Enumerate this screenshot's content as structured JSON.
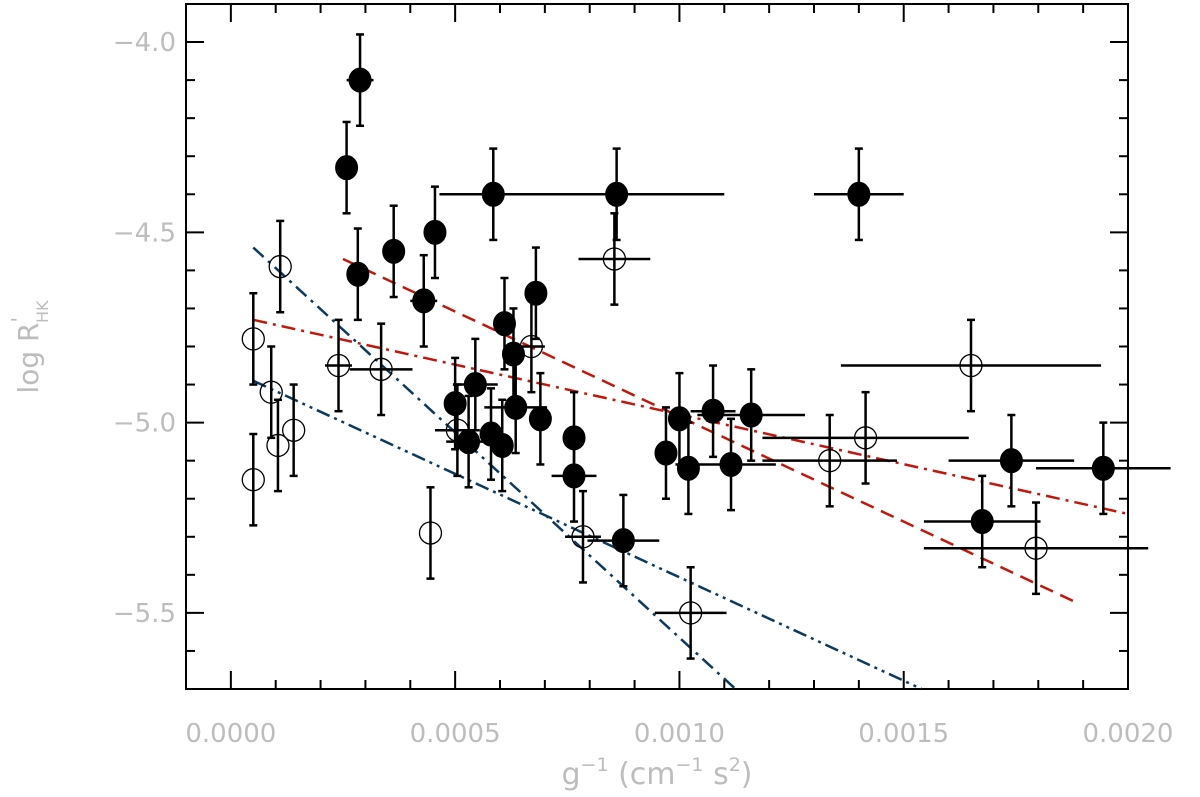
{
  "chart_data": {
    "type": "scatter",
    "xlabel": {
      "base": "g",
      "sup": "−1",
      "units": "(cm",
      "units_sup": "−1",
      "units_tail": " s",
      "units_tail_sup": "2",
      "close": ")"
    },
    "ylabel": {
      "base": "log R",
      "sup": "'",
      "sub": "HK"
    },
    "xlim": [
      -0.0001,
      0.002
    ],
    "ylim": [
      -5.7,
      -3.9
    ],
    "x_ticks": [
      {
        "v": 0.0,
        "label": "0.0000"
      },
      {
        "v": 0.0005,
        "label": "0.0005"
      },
      {
        "v": 0.001,
        "label": "0.0010"
      },
      {
        "v": 0.0015,
        "label": "0.0015"
      },
      {
        "v": 0.002,
        "label": "0.0020"
      }
    ],
    "y_ticks": [
      {
        "v": -4.0,
        "label": "−4.0"
      },
      {
        "v": -4.5,
        "label": "−4.5"
      },
      {
        "v": -5.0,
        "label": "−5.0"
      },
      {
        "v": -5.5,
        "label": "−5.5"
      }
    ],
    "grid": false,
    "series": [
      {
        "marker": "filled",
        "points": [
          {
            "x": 0.000288,
            "y": -4.1,
            "xe": 3e-05,
            "ye": 0.12
          },
          {
            "x": 0.000258,
            "y": -4.33,
            "xe": 0.0,
            "ye": 0.12
          },
          {
            "x": 0.000283,
            "y": -4.61,
            "xe": 0.0,
            "ye": 0.12
          },
          {
            "x": 0.000363,
            "y": -4.55,
            "xe": 0.0,
            "ye": 0.12
          },
          {
            "x": 0.00043,
            "y": -4.68,
            "xe": 3e-05,
            "ye": 0.12
          },
          {
            "x": 0.000455,
            "y": -4.5,
            "xe": 0.0,
            "ye": 0.12
          },
          {
            "x": 0.000585,
            "y": -4.4,
            "xe": 0.00012,
            "ye": 0.12
          },
          {
            "x": 0.00086,
            "y": -4.4,
            "xe": 0.00024,
            "ye": 0.12
          },
          {
            "x": 0.0014,
            "y": -4.4,
            "xe": 0.0001,
            "ye": 0.12
          },
          {
            "x": 0.00068,
            "y": -4.66,
            "xe": 0.0,
            "ye": 0.12
          },
          {
            "x": 0.00061,
            "y": -4.74,
            "xe": 0.0,
            "ye": 0.12
          },
          {
            "x": 0.00063,
            "y": -4.82,
            "xe": 0.0,
            "ye": 0.12
          },
          {
            "x": 0.0005,
            "y": -4.95,
            "xe": 0.0,
            "ye": 0.12
          },
          {
            "x": 0.000545,
            "y": -4.9,
            "xe": 5e-05,
            "ye": 0.12
          },
          {
            "x": 0.00053,
            "y": -5.05,
            "xe": 5e-05,
            "ye": 0.12
          },
          {
            "x": 0.00058,
            "y": -5.03,
            "xe": 0.0,
            "ye": 0.12
          },
          {
            "x": 0.000605,
            "y": -5.06,
            "xe": 0.0,
            "ye": 0.12
          },
          {
            "x": 0.000635,
            "y": -4.96,
            "xe": 7e-05,
            "ye": 0.12
          },
          {
            "x": 0.00069,
            "y": -4.99,
            "xe": 0.0,
            "ye": 0.12
          },
          {
            "x": 0.000765,
            "y": -5.04,
            "xe": 0.0,
            "ye": 0.12
          },
          {
            "x": 0.000765,
            "y": -5.14,
            "xe": 5e-05,
            "ye": 0.12
          },
          {
            "x": 0.000875,
            "y": -5.31,
            "xe": 8e-05,
            "ye": 0.12
          },
          {
            "x": 0.00097,
            "y": -5.08,
            "xe": 0.0,
            "ye": 0.12
          },
          {
            "x": 0.001,
            "y": -4.99,
            "xe": 0.0,
            "ye": 0.12
          },
          {
            "x": 0.00102,
            "y": -5.12,
            "xe": 0.0,
            "ye": 0.12
          },
          {
            "x": 0.001075,
            "y": -4.97,
            "xe": 5e-05,
            "ye": 0.12
          },
          {
            "x": 0.00116,
            "y": -4.98,
            "xe": 0.00012,
            "ye": 0.12
          },
          {
            "x": 0.001115,
            "y": -5.11,
            "xe": 0.0001,
            "ye": 0.12
          },
          {
            "x": 0.001675,
            "y": -5.26,
            "xe": 0.00013,
            "ye": 0.12
          },
          {
            "x": 0.00174,
            "y": -5.1,
            "xe": 0.00014,
            "ye": 0.12
          },
          {
            "x": 0.001945,
            "y": -5.12,
            "xe": 0.00015,
            "ye": 0.12
          }
        ]
      },
      {
        "marker": "open",
        "points": [
          {
            "x": 0.00011,
            "y": -4.59,
            "xe": 0.0,
            "ye": 0.12
          },
          {
            "x": 5e-05,
            "y": -4.78,
            "xe": 0.0,
            "ye": 0.12
          },
          {
            "x": 9e-05,
            "y": -4.92,
            "xe": 0.0,
            "ye": 0.12
          },
          {
            "x": 0.00014,
            "y": -5.02,
            "xe": 0.0,
            "ye": 0.12
          },
          {
            "x": 0.000105,
            "y": -5.06,
            "xe": 0.0,
            "ye": 0.12
          },
          {
            "x": 5e-05,
            "y": -5.15,
            "xe": 0.0,
            "ye": 0.12
          },
          {
            "x": 0.00024,
            "y": -4.85,
            "xe": 3e-05,
            "ye": 0.12
          },
          {
            "x": 0.000335,
            "y": -4.86,
            "xe": 7e-05,
            "ye": 0.12
          },
          {
            "x": 0.000445,
            "y": -5.29,
            "xe": 0.0,
            "ye": 0.12
          },
          {
            "x": 0.000505,
            "y": -5.02,
            "xe": 5e-05,
            "ye": 0.12
          },
          {
            "x": 0.00067,
            "y": -4.8,
            "xe": 3e-05,
            "ye": 0.12
          },
          {
            "x": 0.000855,
            "y": -4.57,
            "xe": 8e-05,
            "ye": 0.12
          },
          {
            "x": 0.000785,
            "y": -5.3,
            "xe": 4e-05,
            "ye": 0.12
          },
          {
            "x": 0.001025,
            "y": -5.5,
            "xe": 8e-05,
            "ye": 0.12
          },
          {
            "x": 0.001335,
            "y": -5.1,
            "xe": 0.00015,
            "ye": 0.12
          },
          {
            "x": 0.001415,
            "y": -5.04,
            "xe": 0.00023,
            "ye": 0.12
          },
          {
            "x": 0.00165,
            "y": -4.85,
            "xe": 0.00029,
            "ye": 0.12
          },
          {
            "x": 0.001795,
            "y": -5.33,
            "xe": 0.00025,
            "ye": 0.12
          }
        ]
      }
    ],
    "fit_lines": [
      {
        "style": "dashed",
        "color": "#c0180f",
        "x": [
          0.00025,
          0.00188
        ],
        "y": [
          -4.57,
          -5.47
        ]
      },
      {
        "style": "dash-dot",
        "color": "#c0180f",
        "x": [
          5e-05,
          0.002
        ],
        "y": [
          -4.73,
          -5.24
        ]
      },
      {
        "style": "dash-dot",
        "color": "#0d3a5c",
        "x": [
          5e-05,
          0.001125
        ],
        "y": [
          -4.54,
          -5.7
        ]
      },
      {
        "style": "dash-dot-dot",
        "color": "#0d3a5c",
        "x": [
          5e-05,
          0.00154
        ],
        "y": [
          -4.89,
          -5.7
        ]
      }
    ],
    "colors": {
      "axis": "#000000",
      "tick_text": "#bdbdbd",
      "points": "#000000"
    }
  }
}
